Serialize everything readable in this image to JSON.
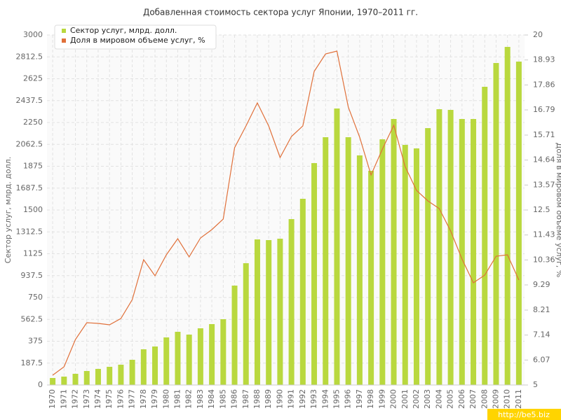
{
  "chart_data": {
    "type": "bar_line",
    "title": "Добавленная стоимость сектора услуг Японии, 1970–2011 гг.",
    "y_label": "Сектор услуг, млрд. долл.",
    "y2_label": "Доля в мировом объеме услуг, %",
    "watermark": "http://be5.biz",
    "categories": [
      "1970",
      "1971",
      "1972",
      "1973",
      "1974",
      "1975",
      "1976",
      "1977",
      "1978",
      "1979",
      "1980",
      "1981",
      "1982",
      "1983",
      "1984",
      "1985",
      "1986",
      "1987",
      "1988",
      "1989",
      "1990",
      "1991",
      "1992",
      "1993",
      "1994",
      "1995",
      "1996",
      "1997",
      "1998",
      "1999",
      "2000",
      "2001",
      "2002",
      "2003",
      "2004",
      "2005",
      "2006",
      "2007",
      "2008",
      "2009",
      "2010",
      "2011"
    ],
    "series": [
      {
        "name": "Сектор услуг, млрд. долл.",
        "color": "#b9d83e",
        "kind": "bar",
        "values": [
          60,
          72,
          96,
          120,
          138,
          156,
          174,
          216,
          306,
          330,
          408,
          456,
          432,
          486,
          522,
          564,
          852,
          1044,
          1248,
          1242,
          1254,
          1422,
          1596,
          1902,
          2124,
          2370,
          2124,
          1968,
          1836,
          2106,
          2280,
          2058,
          2028,
          2202,
          2364,
          2358,
          2280,
          2280,
          2556,
          2760,
          2898,
          2772
        ]
      },
      {
        "name": "Доля в мировом объеме услуг, %",
        "color": "#e0703a",
        "kind": "line",
        "axis": "y2",
        "values": [
          5.42,
          5.78,
          6.95,
          7.67,
          7.64,
          7.58,
          7.85,
          8.66,
          10.37,
          9.68,
          10.58,
          11.27,
          10.49,
          11.3,
          11.66,
          12.11,
          15.17,
          16.1,
          17.09,
          16.1,
          14.75,
          15.65,
          16.1,
          18.44,
          19.19,
          19.31,
          16.91,
          15.62,
          14.0,
          15.11,
          16.13,
          14.36,
          13.34,
          12.89,
          12.56,
          11.6,
          10.4,
          9.38,
          9.71,
          10.52,
          10.58,
          9.5
        ]
      }
    ],
    "ylim": [
      0,
      3000
    ],
    "yticks": [
      0,
      187.5,
      375,
      562.5,
      750,
      937.5,
      1125,
      1312.5,
      1500,
      1687.5,
      1875,
      2062.5,
      2250,
      2437.5,
      2625,
      2812.5,
      3000
    ],
    "y2lim": [
      5,
      20
    ],
    "y2ticks": [
      5,
      6.07,
      7.14,
      8.21,
      9.29,
      10.36,
      11.43,
      12.5,
      13.57,
      14.64,
      15.71,
      16.79,
      17.86,
      18.93,
      20
    ],
    "grid": true
  }
}
